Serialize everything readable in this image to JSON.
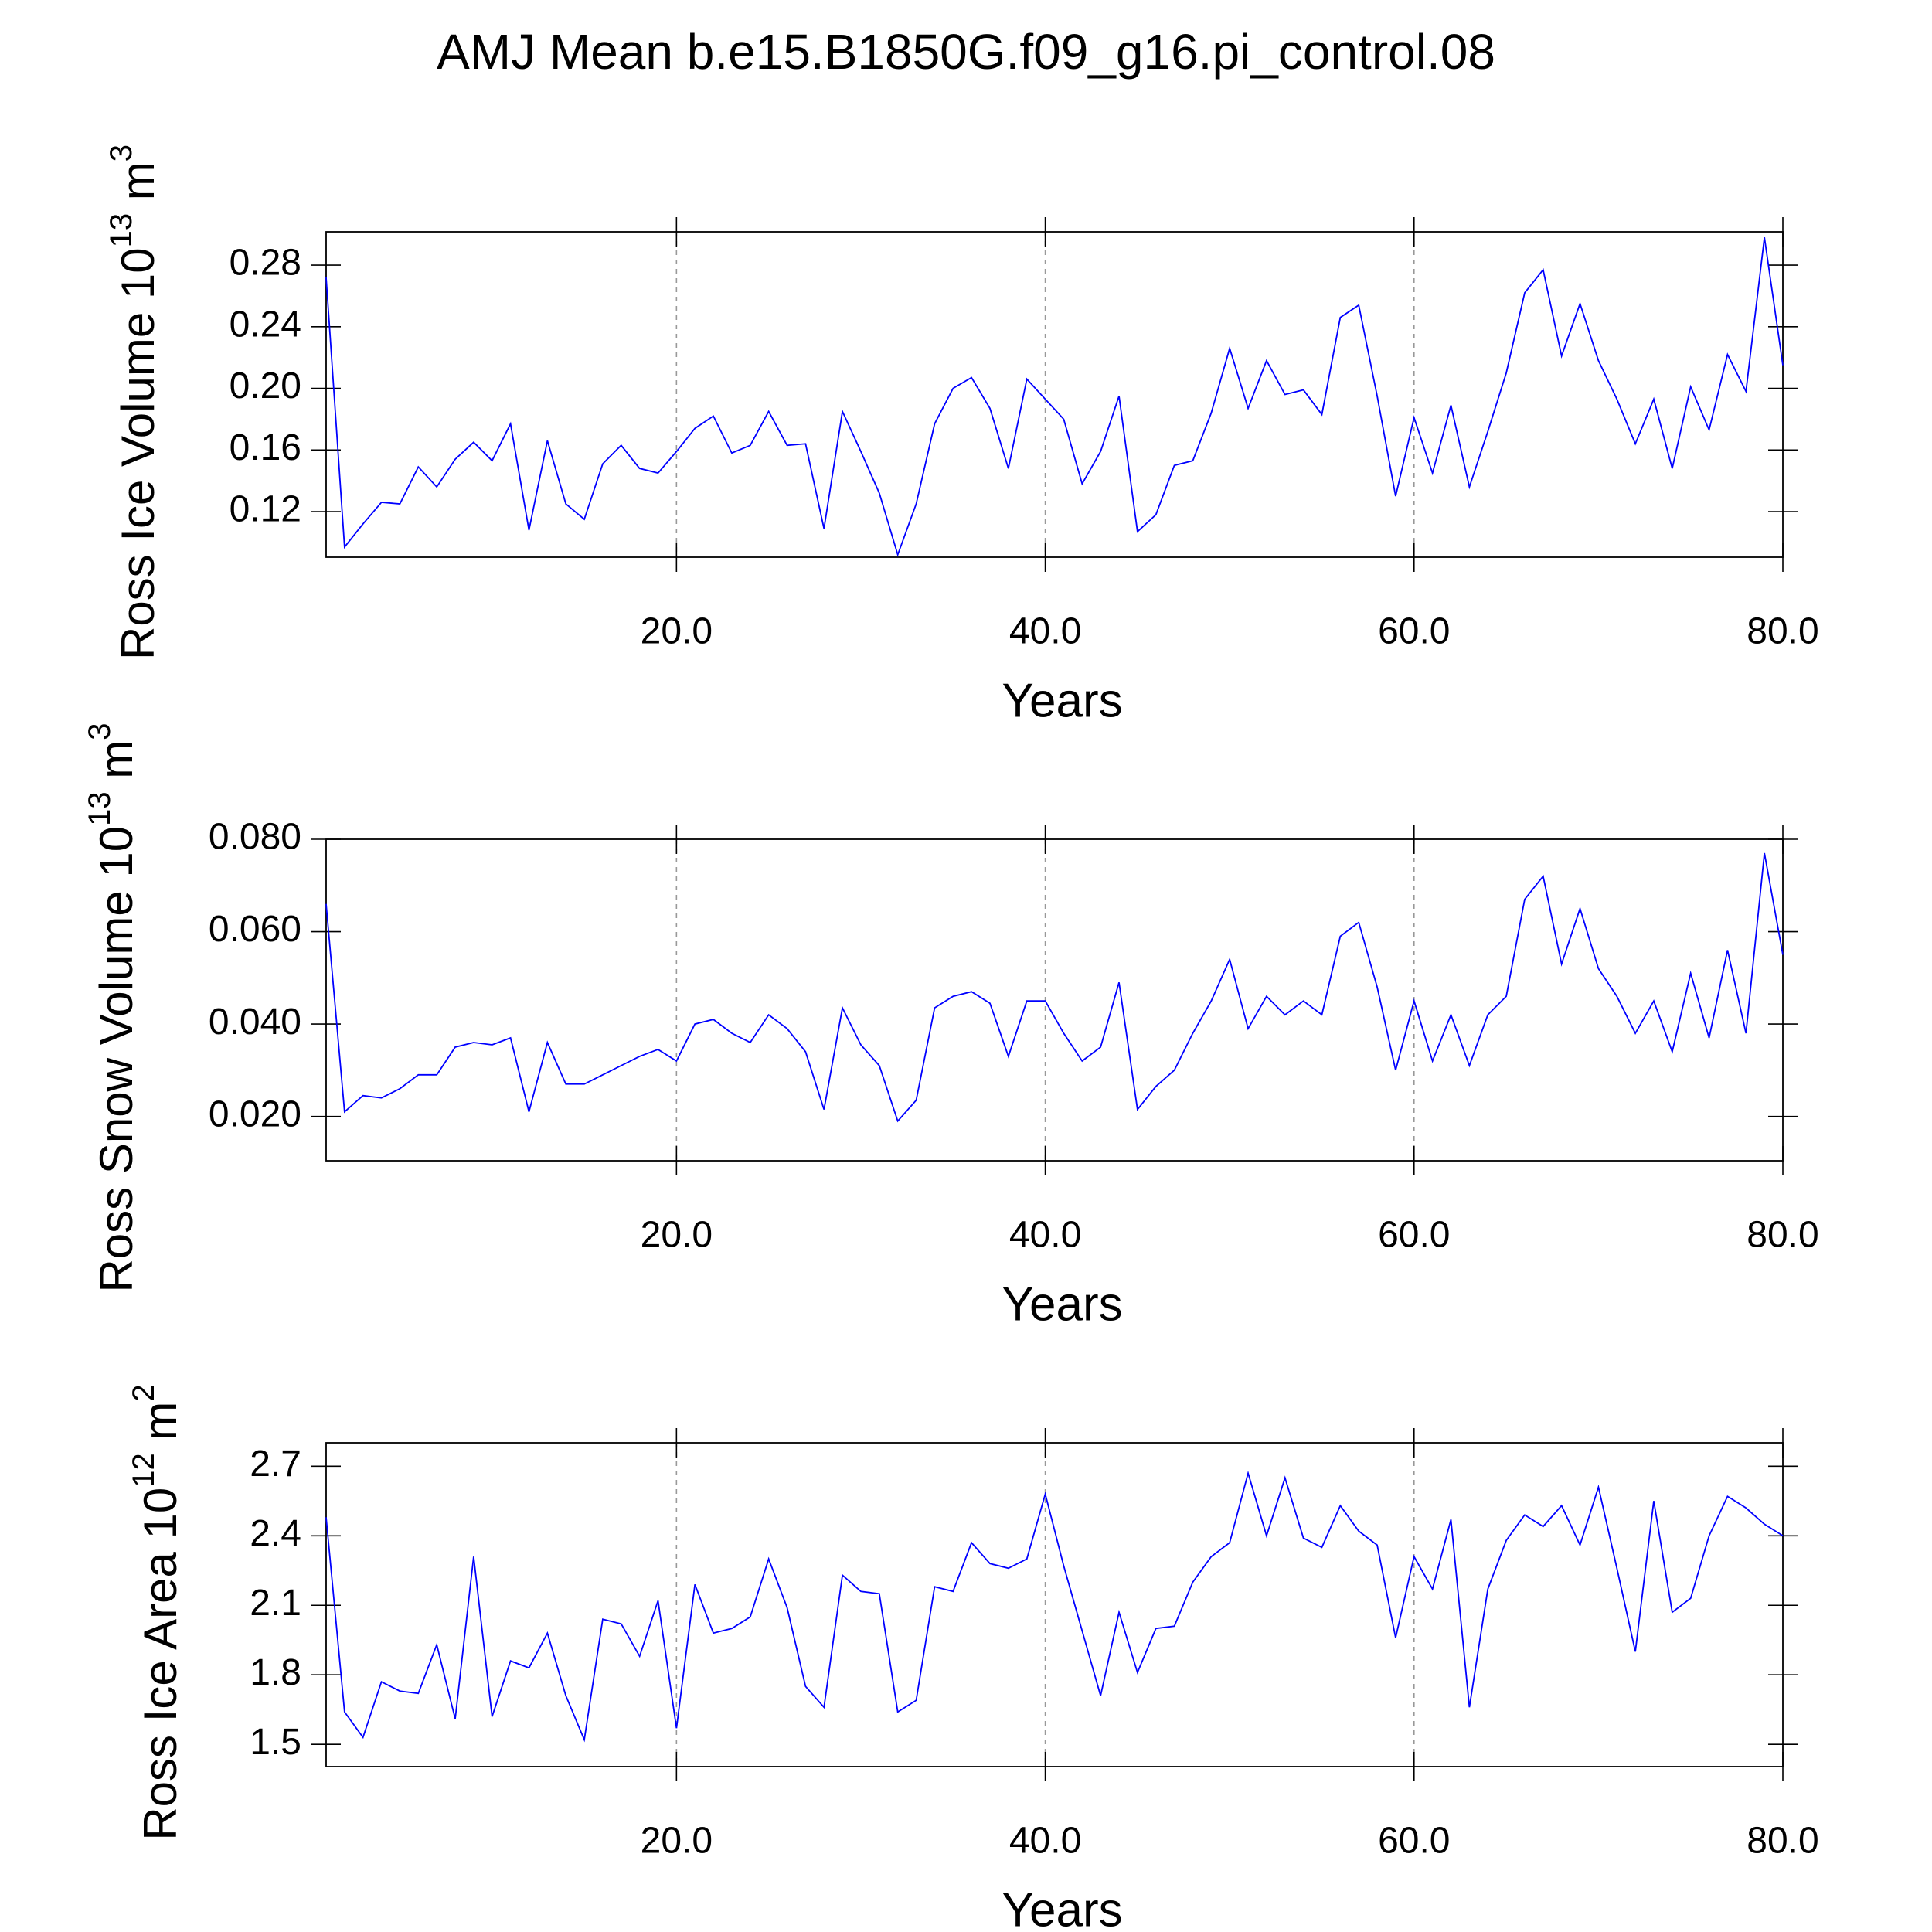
{
  "chart_data": [
    {
      "type": "line",
      "title": "AMJ Mean b.e15.B1850G.f09_g16.pi_control.08",
      "y_label": {
        "text": "Ross Ice Volume 10",
        "exponent": "13",
        "unit": " m",
        "unit_exponent": "3"
      },
      "x_label": "Years",
      "color": "#0000ff",
      "grid": true,
      "x": [
        1,
        2,
        3,
        4,
        5,
        6,
        7,
        8,
        9,
        10,
        11,
        12,
        13,
        14,
        15,
        16,
        17,
        18,
        19,
        20,
        21,
        22,
        23,
        24,
        25,
        26,
        27,
        28,
        29,
        30,
        31,
        32,
        33,
        34,
        35,
        36,
        37,
        38,
        39,
        40,
        41,
        42,
        43,
        44,
        45,
        46,
        47,
        48,
        49,
        50,
        51,
        52,
        53,
        54,
        55,
        56,
        57,
        58,
        59,
        60,
        61,
        62,
        63,
        64,
        65,
        66,
        67,
        68,
        69,
        70,
        71,
        72,
        73,
        74,
        75,
        76,
        77,
        78,
        79,
        80
      ],
      "values": [
        0.272,
        0.097,
        0.112,
        0.126,
        0.125,
        0.149,
        0.136,
        0.154,
        0.165,
        0.153,
        0.177,
        0.108,
        0.166,
        0.125,
        0.115,
        0.151,
        0.163,
        0.148,
        0.145,
        0.159,
        0.174,
        0.182,
        0.158,
        0.163,
        0.185,
        0.163,
        0.164,
        0.109,
        0.185,
        0.159,
        0.132,
        0.092,
        0.125,
        0.177,
        0.2,
        0.207,
        0.187,
        0.148,
        0.206,
        0.193,
        0.18,
        0.138,
        0.159,
        0.195,
        0.107,
        0.118,
        0.15,
        0.153,
        0.184,
        0.226,
        0.187,
        0.218,
        0.196,
        0.199,
        0.183,
        0.246,
        0.254,
        0.195,
        0.13,
        0.181,
        0.145,
        0.189,
        0.136,
        0.172,
        0.21,
        0.262,
        0.277,
        0.221,
        0.255,
        0.218,
        0.193,
        0.164,
        0.193,
        0.148,
        0.201,
        0.173,
        0.222,
        0.198,
        0.298,
        0.215
      ],
      "xlim": [
        1,
        80
      ],
      "xticks": [
        {
          "value": 20,
          "label": "20.0"
        },
        {
          "value": 40,
          "label": "40.0"
        },
        {
          "value": 60,
          "label": "60.0"
        },
        {
          "value": 80,
          "label": "80.0"
        }
      ],
      "ylim": [
        0.0904,
        0.3016
      ],
      "yticks": [
        {
          "value": 0.12,
          "label": "0.12"
        },
        {
          "value": 0.16,
          "label": "0.16"
        },
        {
          "value": 0.2,
          "label": "0.20"
        },
        {
          "value": 0.24,
          "label": "0.24"
        },
        {
          "value": 0.28,
          "label": "0.28"
        }
      ]
    },
    {
      "type": "line",
      "y_label": {
        "text": "Ross Snow Volume 10",
        "exponent": "13",
        "unit": " m",
        "unit_exponent": "3"
      },
      "x_label": "Years",
      "color": "#0000ff",
      "grid": true,
      "x": [
        1,
        2,
        3,
        4,
        5,
        6,
        7,
        8,
        9,
        10,
        11,
        12,
        13,
        14,
        15,
        16,
        17,
        18,
        19,
        20,
        21,
        22,
        23,
        24,
        25,
        26,
        27,
        28,
        29,
        30,
        31,
        32,
        33,
        34,
        35,
        36,
        37,
        38,
        39,
        40,
        41,
        42,
        43,
        44,
        45,
        46,
        47,
        48,
        49,
        50,
        51,
        52,
        53,
        54,
        55,
        56,
        57,
        58,
        59,
        60,
        61,
        62,
        63,
        64,
        65,
        66,
        67,
        68,
        69,
        70,
        71,
        72,
        73,
        74,
        75,
        76,
        77,
        78,
        79,
        80
      ],
      "values": [
        0.066,
        0.021,
        0.0245,
        0.024,
        0.026,
        0.029,
        0.029,
        0.035,
        0.036,
        0.0355,
        0.037,
        0.021,
        0.036,
        0.027,
        0.027,
        0.029,
        0.031,
        0.033,
        0.0345,
        0.032,
        0.04,
        0.041,
        0.038,
        0.036,
        0.042,
        0.039,
        0.034,
        0.0215,
        0.0435,
        0.0355,
        0.031,
        0.019,
        0.0235,
        0.0435,
        0.046,
        0.047,
        0.0445,
        0.033,
        0.045,
        0.045,
        0.038,
        0.032,
        0.035,
        0.049,
        0.0215,
        0.0265,
        0.03,
        0.038,
        0.045,
        0.054,
        0.039,
        0.046,
        0.042,
        0.045,
        0.042,
        0.059,
        0.062,
        0.048,
        0.03,
        0.045,
        0.032,
        0.042,
        0.031,
        0.042,
        0.046,
        0.067,
        0.072,
        0.053,
        0.065,
        0.052,
        0.046,
        0.038,
        0.045,
        0.034,
        0.051,
        0.037,
        0.056,
        0.038,
        0.077,
        0.055
      ],
      "xlim": [
        1,
        80
      ],
      "xticks": [
        {
          "value": 20,
          "label": "20.0"
        },
        {
          "value": 40,
          "label": "40.0"
        },
        {
          "value": 60,
          "label": "60.0"
        },
        {
          "value": 80,
          "label": "80.0"
        }
      ],
      "ylim": [
        0.0104,
        0.08
      ],
      "yticks": [
        {
          "value": 0.02,
          "label": "0.020"
        },
        {
          "value": 0.04,
          "label": "0.040"
        },
        {
          "value": 0.06,
          "label": "0.060"
        },
        {
          "value": 0.08,
          "label": "0.080"
        }
      ]
    },
    {
      "type": "line",
      "y_label": {
        "text": "Ross Ice Area 10",
        "exponent": "12",
        "unit": " m",
        "unit_exponent": "2"
      },
      "x_label": "Years",
      "color": "#0000ff",
      "grid": true,
      "x": [
        1,
        2,
        3,
        4,
        5,
        6,
        7,
        8,
        9,
        10,
        11,
        12,
        13,
        14,
        15,
        16,
        17,
        18,
        19,
        20,
        21,
        22,
        23,
        24,
        25,
        26,
        27,
        28,
        29,
        30,
        31,
        32,
        33,
        34,
        35,
        36,
        37,
        38,
        39,
        40,
        41,
        42,
        43,
        44,
        45,
        46,
        47,
        48,
        49,
        50,
        51,
        52,
        53,
        54,
        55,
        56,
        57,
        58,
        59,
        60,
        61,
        62,
        63,
        64,
        65,
        66,
        67,
        68,
        69,
        70,
        71,
        72,
        73,
        74,
        75,
        76,
        77,
        78,
        79,
        80
      ],
      "values": [
        2.48,
        1.64,
        1.53,
        1.77,
        1.73,
        1.72,
        1.93,
        1.61,
        2.31,
        1.62,
        1.86,
        1.83,
        1.98,
        1.71,
        1.52,
        2.04,
        2.02,
        1.88,
        2.12,
        1.57,
        2.19,
        1.98,
        2.0,
        2.05,
        2.3,
        2.09,
        1.75,
        1.66,
        2.23,
        2.16,
        2.15,
        1.64,
        1.69,
        2.18,
        2.16,
        2.37,
        2.28,
        2.26,
        2.3,
        2.58,
        2.27,
        1.99,
        1.71,
        2.07,
        1.81,
        2.0,
        2.01,
        2.2,
        2.31,
        2.37,
        2.67,
        2.4,
        2.65,
        2.39,
        2.35,
        2.53,
        2.42,
        2.36,
        1.96,
        2.31,
        2.17,
        2.47,
        1.66,
        2.17,
        2.38,
        2.49,
        2.44,
        2.53,
        2.36,
        2.61,
        2.26,
        1.9,
        2.55,
        2.07,
        2.13,
        2.4,
        2.57,
        2.52,
        2.45,
        2.4
      ],
      "xlim": [
        1,
        80
      ],
      "xticks": [
        {
          "value": 20,
          "label": "20.0"
        },
        {
          "value": 40,
          "label": "40.0"
        },
        {
          "value": 60,
          "label": "60.0"
        },
        {
          "value": 80,
          "label": "80.0"
        }
      ],
      "ylim": [
        1.404,
        2.801
      ],
      "yticks": [
        1.5,
        1.8,
        2.1,
        2.4,
        2.7
      ]
    }
  ]
}
